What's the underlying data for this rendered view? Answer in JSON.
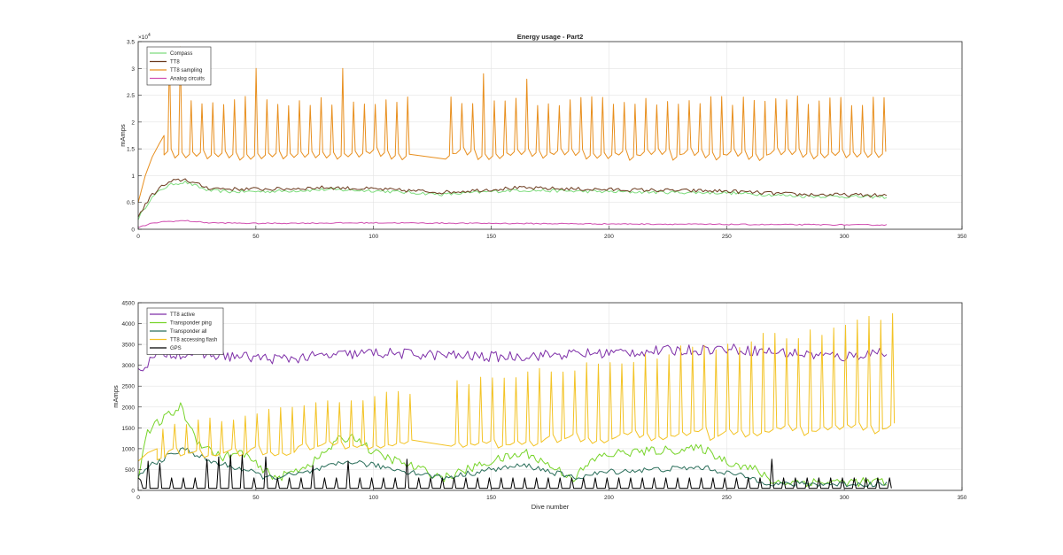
{
  "chart_data": [
    {
      "type": "line",
      "title": "Energy usage - Part2",
      "xlabel": "",
      "ylabel": "mAmps",
      "xlim": [
        0,
        350
      ],
      "ylim": [
        0,
        35000
      ],
      "x_ticks": [
        0,
        50,
        100,
        150,
        200,
        250,
        300,
        350
      ],
      "y_ticks": [
        0,
        5000,
        10000,
        15000,
        20000,
        25000,
        30000,
        35000
      ],
      "y_tick_labels": [
        "0",
        "0.5",
        "1",
        "1.5",
        "2",
        "2.5",
        "3",
        "3.5"
      ],
      "y_exponent_label": "×10",
      "y_exponent_power": "4",
      "grid": true,
      "legend_position": "top-left",
      "series": [
        {
          "name": "Compass",
          "color": "#7ddc7d",
          "pattern": "noisy",
          "x_range": [
            0,
            318
          ],
          "points": [
            [
              0,
              2000
            ],
            [
              5,
              5500
            ],
            [
              10,
              7500
            ],
            [
              15,
              8500
            ],
            [
              20,
              8800
            ],
            [
              25,
              8000
            ],
            [
              30,
              7200
            ],
            [
              40,
              7000
            ],
            [
              60,
              7100
            ],
            [
              80,
              7400
            ],
            [
              100,
              7200
            ],
            [
              130,
              6500
            ],
            [
              160,
              7300
            ],
            [
              200,
              7000
            ],
            [
              250,
              6800
            ],
            [
              280,
              6200
            ],
            [
              300,
              6100
            ],
            [
              318,
              6000
            ]
          ],
          "noise": 300
        },
        {
          "name": "TT8",
          "color": "#6b3a1e",
          "pattern": "noisy",
          "x_range": [
            0,
            318
          ],
          "points": [
            [
              0,
              2300
            ],
            [
              5,
              6000
            ],
            [
              10,
              8000
            ],
            [
              15,
              9000
            ],
            [
              20,
              9300
            ],
            [
              25,
              8400
            ],
            [
              30,
              7700
            ],
            [
              40,
              7500
            ],
            [
              60,
              7500
            ],
            [
              80,
              7800
            ],
            [
              100,
              7500
            ],
            [
              130,
              6900
            ],
            [
              160,
              7700
            ],
            [
              200,
              7400
            ],
            [
              250,
              7100
            ],
            [
              280,
              6500
            ],
            [
              300,
              6400
            ],
            [
              318,
              6300
            ]
          ],
          "noise": 350
        },
        {
          "name": "TT8 sampling",
          "color": "#e88f1e",
          "pattern": "spiky",
          "x_range": [
            0,
            318
          ],
          "ramp": [
            [
              0,
              5000
            ],
            [
              3,
              10000
            ],
            [
              6,
              13500
            ],
            [
              9,
              16000
            ],
            [
              11,
              17500
            ]
          ],
          "start": 11,
          "step": 4.6,
          "base": 13500,
          "peak": 24000,
          "base_variation": 700,
          "extra_peaks": [
            [
              13,
              33000
            ],
            [
              20,
              34000
            ],
            [
              52,
              30000
            ],
            [
              86,
              30000
            ],
            [
              146,
              29000
            ],
            [
              164,
              28000
            ]
          ],
          "gap": [
            116,
            130
          ]
        },
        {
          "name": "Analog circuits",
          "color": "#d04fb0",
          "pattern": "noisy",
          "x_range": [
            0,
            318
          ],
          "points": [
            [
              0,
              300
            ],
            [
              5,
              1000
            ],
            [
              10,
              1400
            ],
            [
              20,
              1600
            ],
            [
              30,
              1200
            ],
            [
              50,
              1100
            ],
            [
              100,
              1200
            ],
            [
              150,
              1100
            ],
            [
              200,
              1000
            ],
            [
              250,
              900
            ],
            [
              318,
              800
            ]
          ],
          "noise": 100
        }
      ]
    },
    {
      "type": "line",
      "title": "",
      "xlabel": "Dive number",
      "ylabel": "mAmps",
      "xlim": [
        0,
        350
      ],
      "ylim": [
        0,
        4500
      ],
      "x_ticks": [
        0,
        50,
        100,
        150,
        200,
        250,
        300,
        350
      ],
      "y_ticks": [
        0,
        500,
        1000,
        1500,
        2000,
        2500,
        3000,
        3500,
        4000,
        4500
      ],
      "y_tick_labels": [
        "0",
        "500",
        "1000",
        "1500",
        "2000",
        "2500",
        "3000",
        "3500",
        "4000",
        "4500"
      ],
      "grid": true,
      "legend_position": "top-left",
      "series": [
        {
          "name": "TT8 active",
          "color": "#7e2fa8",
          "pattern": "noisy",
          "x_range": [
            0,
            318
          ],
          "points": [
            [
              0,
              2900
            ],
            [
              10,
              3300
            ],
            [
              30,
              3250
            ],
            [
              60,
              3150
            ],
            [
              100,
              3300
            ],
            [
              150,
              3200
            ],
            [
              200,
              3300
            ],
            [
              250,
              3400
            ],
            [
              300,
              3200
            ],
            [
              318,
              3350
            ]
          ],
          "noise": 130
        },
        {
          "name": "Transponder ping",
          "color": "#77d42a",
          "pattern": "noisy",
          "x_range": [
            0,
            318
          ],
          "points": [
            [
              0,
              200
            ],
            [
              3,
              1300
            ],
            [
              8,
              1600
            ],
            [
              18,
              2000
            ],
            [
              25,
              1200
            ],
            [
              35,
              800
            ],
            [
              45,
              900
            ],
            [
              52,
              500
            ],
            [
              60,
              300
            ],
            [
              75,
              700
            ],
            [
              85,
              1200
            ],
            [
              92,
              1300
            ],
            [
              100,
              900
            ],
            [
              110,
              700
            ],
            [
              130,
              300
            ],
            [
              150,
              700
            ],
            [
              165,
              900
            ],
            [
              178,
              500
            ],
            [
              185,
              300
            ],
            [
              195,
              800
            ],
            [
              205,
              900
            ],
            [
              220,
              950
            ],
            [
              240,
              1000
            ],
            [
              250,
              700
            ],
            [
              262,
              500
            ],
            [
              270,
              200
            ],
            [
              318,
              200
            ]
          ],
          "noise": 110
        },
        {
          "name": "Transponder all",
          "color": "#2a6e5a",
          "pattern": "noisy",
          "x_range": [
            0,
            318
          ],
          "points": [
            [
              0,
              300
            ],
            [
              5,
              600
            ],
            [
              12,
              800
            ],
            [
              20,
              1000
            ],
            [
              30,
              700
            ],
            [
              45,
              500
            ],
            [
              55,
              300
            ],
            [
              70,
              400
            ],
            [
              90,
              700
            ],
            [
              110,
              500
            ],
            [
              130,
              300
            ],
            [
              150,
              500
            ],
            [
              165,
              600
            ],
            [
              185,
              300
            ],
            [
              200,
              450
            ],
            [
              220,
              500
            ],
            [
              240,
              550
            ],
            [
              260,
              300
            ],
            [
              270,
              150
            ],
            [
              318,
              150
            ]
          ],
          "noise": 70
        },
        {
          "name": "TT8 accessing flash",
          "color": "#f3c324",
          "pattern": "spiky",
          "x_range": [
            0,
            318
          ],
          "ramp": [
            [
              0,
              700
            ],
            [
              4,
              900
            ],
            [
              8,
              1000
            ]
          ],
          "start": 8,
          "step": 5.0,
          "base_start": 850,
          "base_end": 1450,
          "peak_start": 1500,
          "peak_end": 4100,
          "base_variation": 120,
          "gap": [
            116,
            130
          ]
        },
        {
          "name": "GPS",
          "color": "#000000",
          "pattern": "spikes",
          "x_range": [
            0,
            318
          ],
          "start": 2,
          "step": 5.0,
          "base": 50,
          "peak": 300,
          "extra_peaks": [
            [
              5,
              700
            ],
            [
              10,
              650
            ],
            [
              30,
              750
            ],
            [
              35,
              800
            ],
            [
              40,
              850
            ],
            [
              45,
              850
            ],
            [
              55,
              800
            ],
            [
              75,
              600
            ],
            [
              88,
              700
            ],
            [
              116,
              750
            ],
            [
              270,
              750
            ]
          ]
        }
      ]
    }
  ]
}
